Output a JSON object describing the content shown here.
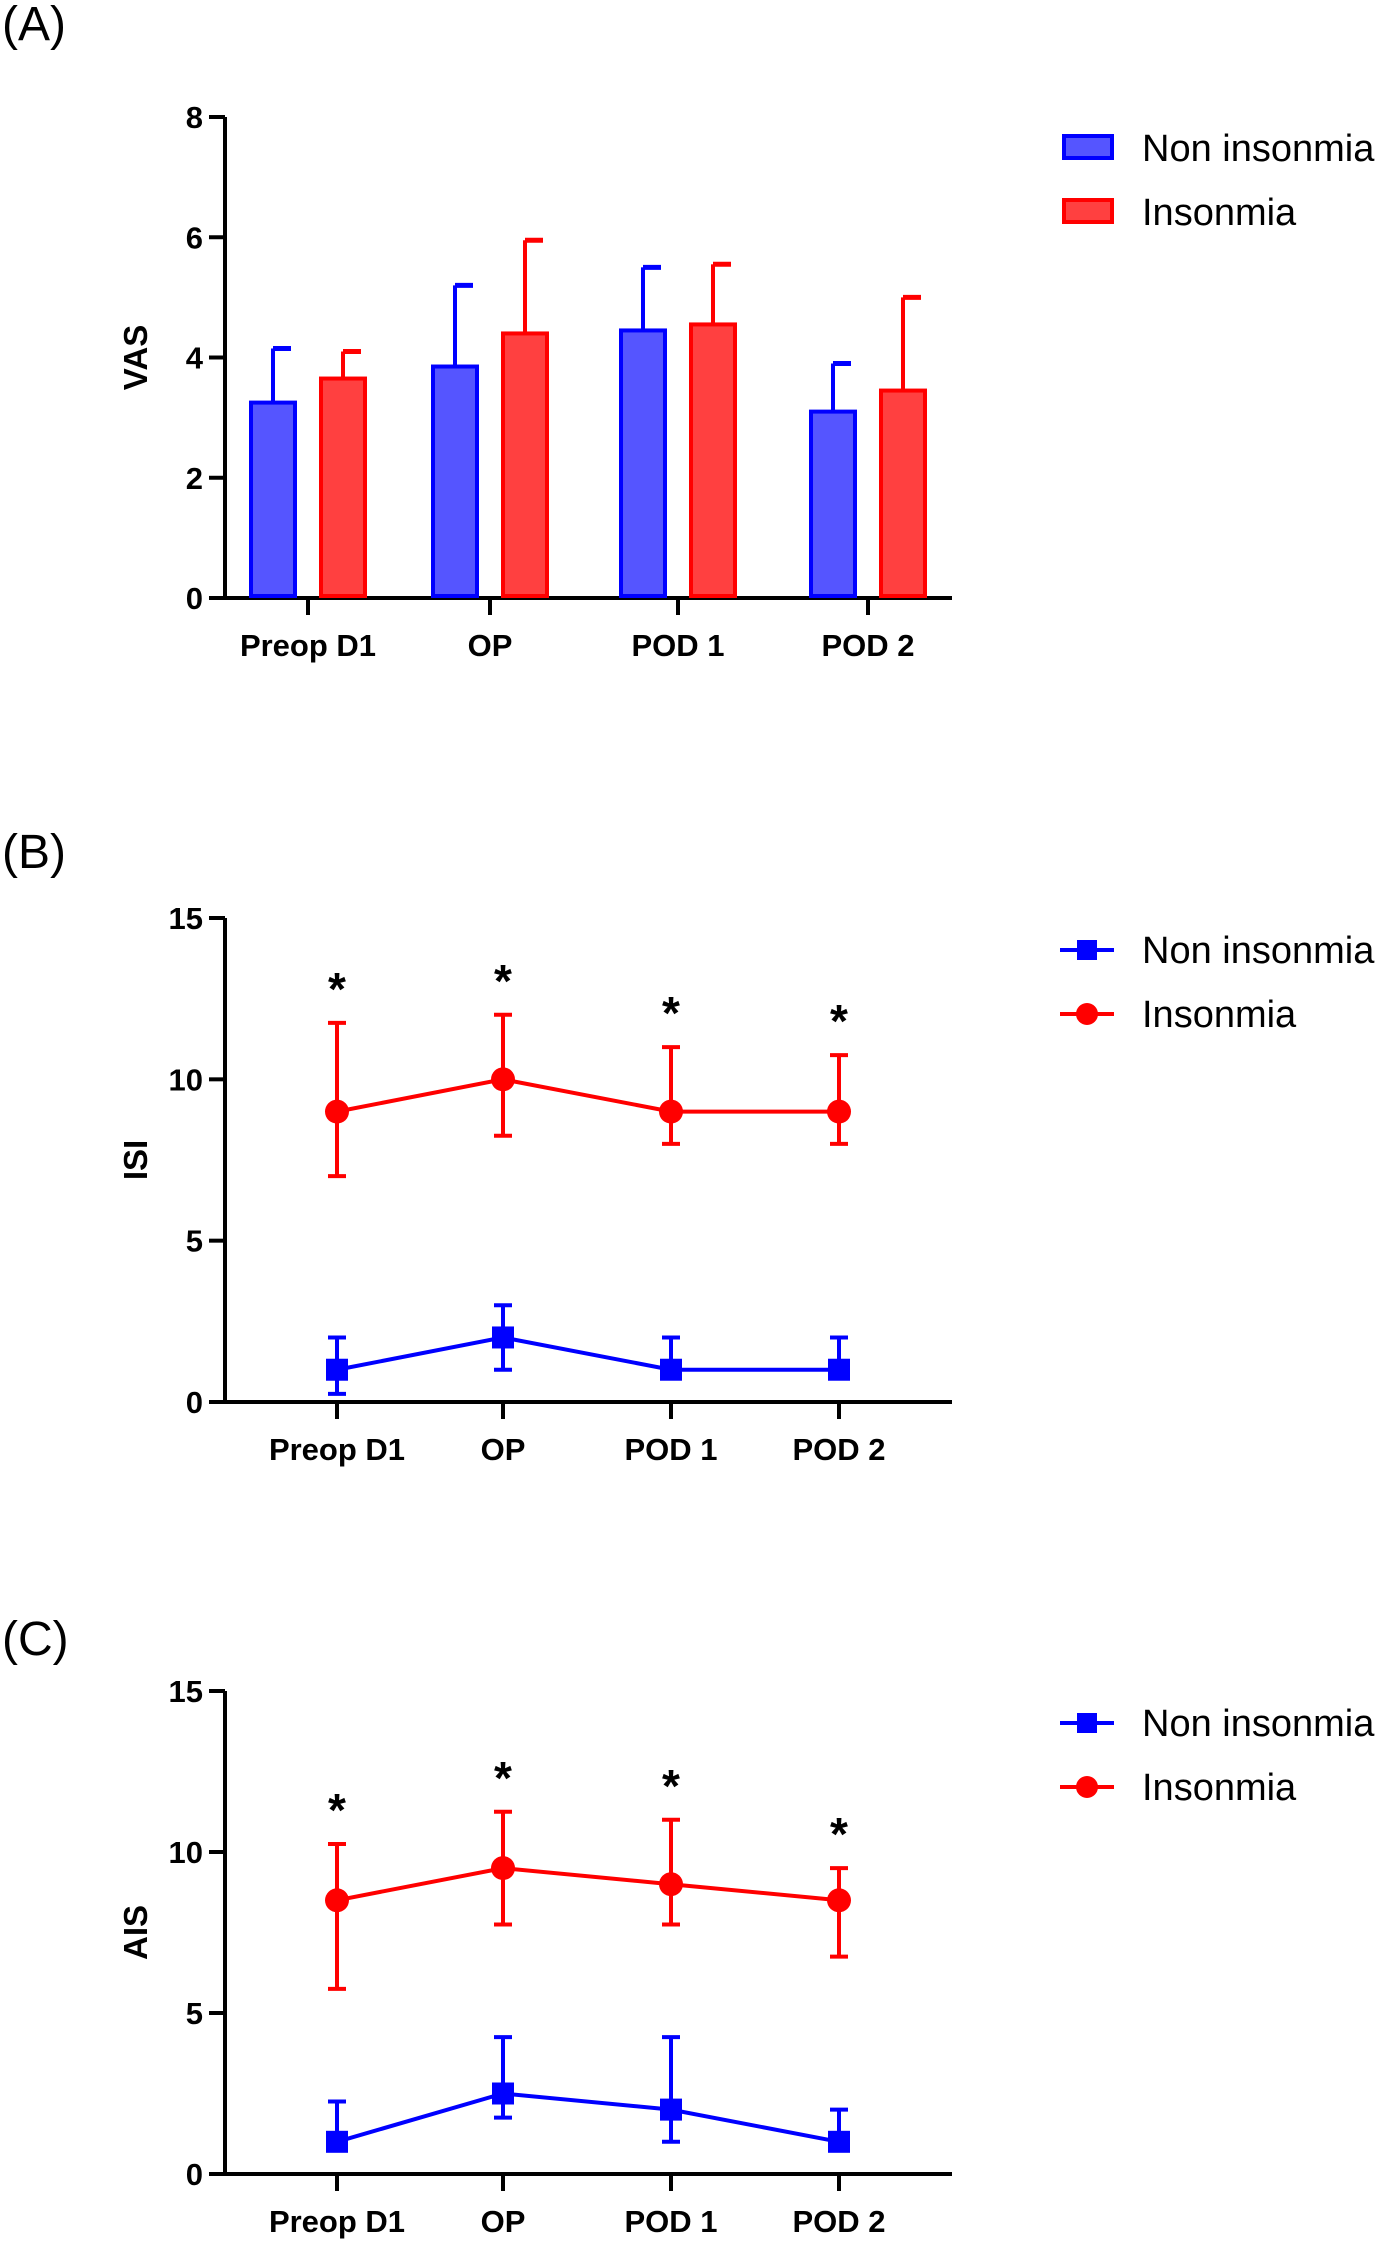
{
  "chart_data": [
    {
      "panel": "(A)",
      "type": "bar",
      "ylabel": "VAS",
      "ylim": [
        0,
        8
      ],
      "yticks": [
        0,
        2,
        4,
        6,
        8
      ],
      "categories": [
        "Preop D1",
        "OP",
        "POD 1",
        "POD 2"
      ],
      "series": [
        {
          "name": "Non insonmia",
          "color": "#5555ff",
          "edge": "#0000ff",
          "values": [
            3.25,
            3.85,
            4.45,
            3.1
          ],
          "err_upper": [
            4.15,
            5.2,
            5.5,
            3.9
          ]
        },
        {
          "name": "Insonmia",
          "color": "#ff4040",
          "edge": "#ff0000",
          "values": [
            3.65,
            4.4,
            4.55,
            3.45
          ],
          "err_upper": [
            4.1,
            5.95,
            5.55,
            5.0
          ]
        }
      ]
    },
    {
      "panel": "(B)",
      "type": "line",
      "ylabel": "ISI",
      "ylim": [
        0,
        15
      ],
      "yticks": [
        0,
        5,
        10,
        15
      ],
      "categories": [
        "Preop D1",
        "OP",
        "POD 1",
        "POD 2"
      ],
      "annotations": [
        "*",
        "*",
        "*",
        "*"
      ],
      "series": [
        {
          "name": "Non insonmia",
          "color": "#0000ff",
          "marker": "square",
          "values": [
            1,
            2,
            1,
            1
          ],
          "err_low": [
            0.25,
            1,
            1,
            1
          ],
          "err_high": [
            2,
            3,
            2,
            2
          ]
        },
        {
          "name": "Insonmia",
          "color": "#ff0000",
          "marker": "circle",
          "values": [
            9,
            10,
            9,
            9
          ],
          "err_low": [
            7,
            8.25,
            8,
            8
          ],
          "err_high": [
            11.75,
            12,
            11,
            10.75
          ]
        }
      ]
    },
    {
      "panel": "(C)",
      "type": "line",
      "ylabel": "AIS",
      "ylim": [
        0,
        15
      ],
      "yticks": [
        0,
        5,
        10,
        15
      ],
      "categories": [
        "Preop D1",
        "OP",
        "POD 1",
        "POD 2"
      ],
      "annotations": [
        "*",
        "*",
        "*",
        "*"
      ],
      "series": [
        {
          "name": "Non insonmia",
          "color": "#0000ff",
          "marker": "square",
          "values": [
            1,
            2.5,
            2,
            1
          ],
          "err_low": [
            1,
            1.75,
            1,
            1
          ],
          "err_high": [
            2.25,
            4.25,
            4.25,
            2
          ]
        },
        {
          "name": "Insonmia",
          "color": "#ff0000",
          "marker": "circle",
          "values": [
            8.5,
            9.5,
            9,
            8.5
          ],
          "err_low": [
            5.75,
            7.75,
            7.75,
            6.75
          ],
          "err_high": [
            10.25,
            11.25,
            11,
            9.5
          ]
        }
      ]
    }
  ]
}
